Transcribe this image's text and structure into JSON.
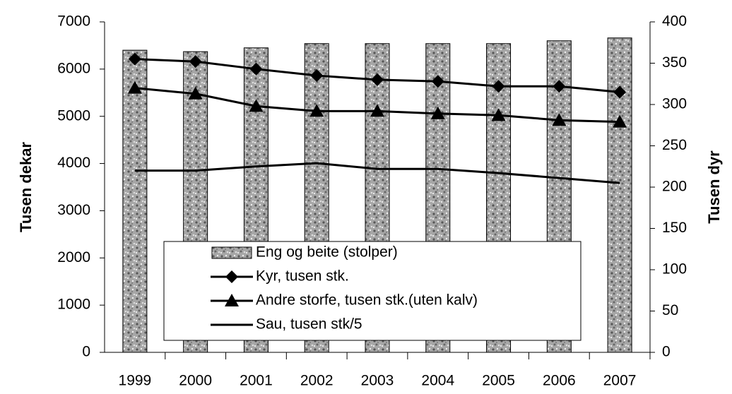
{
  "chart_data": {
    "type": "bar_line",
    "categories": [
      "1999",
      "2000",
      "2001",
      "2002",
      "2003",
      "2004",
      "2005",
      "2006",
      "2007"
    ],
    "ylabel": "Tusen dekar",
    "y2label": "Tusen dyr",
    "ylim": [
      0,
      7000
    ],
    "yticks": [
      0,
      1000,
      2000,
      3000,
      4000,
      5000,
      6000,
      7000
    ],
    "y2lim": [
      0,
      400
    ],
    "y2ticks": [
      0,
      50,
      100,
      150,
      200,
      250,
      300,
      350,
      400
    ],
    "series": [
      {
        "name": "Eng og beite (stolper)",
        "type": "bar",
        "axis": "y",
        "color": "#a6a6a6",
        "values": [
          6400,
          6370,
          6450,
          6540,
          6540,
          6540,
          6540,
          6600,
          6660
        ]
      },
      {
        "name": "Kyr, tusen stk.",
        "type": "line",
        "axis": "y2",
        "marker": "diamond",
        "color": "#000000",
        "values": [
          355,
          352,
          343,
          335,
          330,
          328,
          322,
          322,
          315
        ]
      },
      {
        "name": "Andre storfe, tusen stk.(uten kalv)",
        "type": "line",
        "axis": "y2",
        "marker": "triangle",
        "color": "#000000",
        "values": [
          320,
          313,
          298,
          292,
          292,
          289,
          287,
          281,
          279
        ]
      },
      {
        "name": "Sau, tusen stk/5",
        "type": "line",
        "axis": "y2",
        "color": "#000000",
        "values": [
          220,
          220,
          225,
          229,
          222,
          222,
          217,
          211,
          205
        ]
      }
    ]
  }
}
